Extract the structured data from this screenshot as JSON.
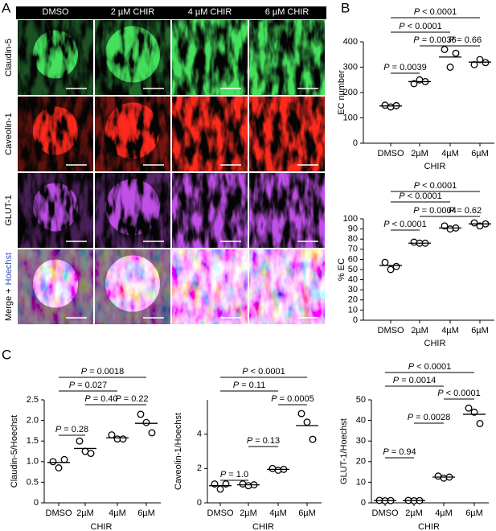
{
  "figure": {
    "panel_letters": [
      "A",
      "B",
      "C"
    ],
    "columns": [
      "DMSO",
      "2 µM CHIR",
      "4 µM CHIR",
      "6 µM CHIR"
    ],
    "rows": [
      "Claudin-5",
      "Caveolin-1",
      "GLUT-1"
    ],
    "row_colors": [
      "#2fb24a",
      "#d42a2a",
      "#b23cc8"
    ],
    "merge": [
      "Merge +",
      "Hoechst"
    ],
    "merge_colors": [
      "#000000",
      "#2c4fc0"
    ]
  },
  "chart_data": [
    {
      "type": "dotplot",
      "ylabel": "EC number",
      "xlabel": "CHIR",
      "categories": [
        "DMSO",
        "2µM",
        "4µM",
        "6µM"
      ],
      "points": [
        [
          150,
          143,
          148
        ],
        [
          235,
          250,
          243
        ],
        [
          370,
          300,
          355
        ],
        [
          310,
          330,
          318
        ]
      ],
      "means": [
        147,
        243,
        340,
        320
      ],
      "ylim": [
        0,
        400
      ],
      "yticks": [
        0,
        100,
        200,
        300,
        400
      ],
      "comparisons": [
        {
          "pair": [
            "DMSO",
            "6µM"
          ],
          "label": "P < 0.0001"
        },
        {
          "pair": [
            "DMSO",
            "4µM"
          ],
          "label": "P < 0.0001"
        },
        {
          "pair": [
            "2µM",
            "4µM"
          ],
          "label": "P = 0.0036"
        },
        {
          "pair": [
            "4µM",
            "6µM"
          ],
          "label": "P = 0.66"
        },
        {
          "pair": [
            "DMSO",
            "2µM"
          ],
          "label": "P = 0.0039"
        }
      ]
    },
    {
      "type": "dotplot",
      "ylabel": "% EC",
      "xlabel": "CHIR",
      "categories": [
        "DMSO",
        "2µM",
        "4µM",
        "6µM"
      ],
      "points": [
        [
          57,
          50,
          53
        ],
        [
          77,
          76,
          76
        ],
        [
          93,
          90,
          91
        ],
        [
          96,
          93,
          95
        ]
      ],
      "means": [
        54,
        76,
        91,
        95
      ],
      "ylim": [
        0,
        100
      ],
      "yticks": [
        0,
        10,
        20,
        30,
        40,
        50,
        60,
        70,
        80,
        90,
        100
      ],
      "comparisons": [
        {
          "pair": [
            "DMSO",
            "6µM"
          ],
          "label": "P < 0.0001"
        },
        {
          "pair": [
            "DMSO",
            "4µM"
          ],
          "label": "P < 0.0001"
        },
        {
          "pair": [
            "2µM",
            "4µM"
          ],
          "label": "P = 0.0004"
        },
        {
          "pair": [
            "4µM",
            "6µM"
          ],
          "label": "P = 0.62"
        },
        {
          "pair": [
            "DMSO",
            "2µM"
          ],
          "label": "P < 0.0001"
        }
      ]
    },
    {
      "type": "dotplot",
      "ylabel": "Claudin-5/Hoechst",
      "xlabel": "CHIR",
      "categories": [
        "DMSO",
        "2µM",
        "4µM",
        "6µM"
      ],
      "points": [
        [
          1.0,
          0.85,
          1.05
        ],
        [
          1.5,
          1.25,
          1.2
        ],
        [
          1.65,
          1.55,
          1.55
        ],
        [
          2.15,
          1.95,
          1.7
        ]
      ],
      "means": [
        0.98,
        1.32,
        1.58,
        1.93
      ],
      "ylim": [
        0,
        2.5
      ],
      "yticks": [
        0,
        0.5,
        {
          "value": 1,
          "label": "1.0"
        },
        1.5,
        {
          "value": 2,
          "label": "2.0"
        },
        2.5
      ],
      "comparisons": [
        {
          "pair": [
            "DMSO",
            "6µM"
          ],
          "label": "P = 0.0018"
        },
        {
          "pair": [
            "DMSO",
            "4µM"
          ],
          "label": "P = 0.027"
        },
        {
          "pair": [
            "2µM",
            "4µM"
          ],
          "label": "P = 0.40"
        },
        {
          "pair": [
            "4µM",
            "6µM"
          ],
          "label": "P = 0.22"
        },
        {
          "pair": [
            "DMSO",
            "2µM"
          ],
          "label": "P = 0.28"
        }
      ]
    },
    {
      "type": "dotplot",
      "ylabel": "Caveolin-1/Hoechst",
      "xlabel": "CHIR",
      "categories": [
        "DMSO",
        "2µM",
        "4µM",
        "6µM"
      ],
      "points": [
        [
          1.1,
          0.8,
          1.1
        ],
        [
          1.1,
          1.0,
          1.05
        ],
        [
          2.0,
          1.9,
          1.95
        ],
        [
          5.2,
          4.7,
          3.7
        ]
      ],
      "means": [
        1.0,
        1.05,
        1.95,
        4.5
      ],
      "ylim": [
        0,
        6
      ],
      "yticks": [
        0,
        2,
        4
      ],
      "comparisons": [
        {
          "pair": [
            "DMSO",
            "6µM"
          ],
          "label": "P < 0.0001"
        },
        {
          "pair": [
            "DMSO",
            "4µM"
          ],
          "label": "P = 0.11"
        },
        {
          "pair": [
            "4µM",
            "6µM"
          ],
          "label": "P = 0.0005"
        },
        {
          "pair": [
            "2µM",
            "4µM"
          ],
          "label": "P = 0.13"
        },
        {
          "pair": [
            "DMSO",
            "2µM"
          ],
          "label": "P = 1.0"
        }
      ]
    },
    {
      "type": "dotplot",
      "ylabel": "GLUT-1/Hoechst",
      "xlabel": "CHIR",
      "categories": [
        "DMSO",
        "2µM",
        "4µM",
        "6µM"
      ],
      "points": [
        [
          1.2,
          1.0,
          1.1
        ],
        [
          1.2,
          1.0,
          1.1
        ],
        [
          13,
          12,
          12.5
        ],
        [
          46,
          44,
          38.5
        ]
      ],
      "means": [
        1.1,
        1.1,
        12.5,
        43
      ],
      "ylim": [
        0,
        50
      ],
      "yticks": [
        0,
        10,
        20,
        30,
        40,
        50
      ],
      "comparisons": [
        {
          "pair": [
            "DMSO",
            "6µM"
          ],
          "label": "P < 0.0001"
        },
        {
          "pair": [
            "DMSO",
            "4µM"
          ],
          "label": "P = 0.0014"
        },
        {
          "pair": [
            "4µM",
            "6µM"
          ],
          "label": "P < 0.0001"
        },
        {
          "pair": [
            "2µM",
            "4µM"
          ],
          "label": "P = 0.0028"
        },
        {
          "pair": [
            "DMSO",
            "2µM"
          ],
          "label": "P = 0.94"
        }
      ]
    }
  ]
}
